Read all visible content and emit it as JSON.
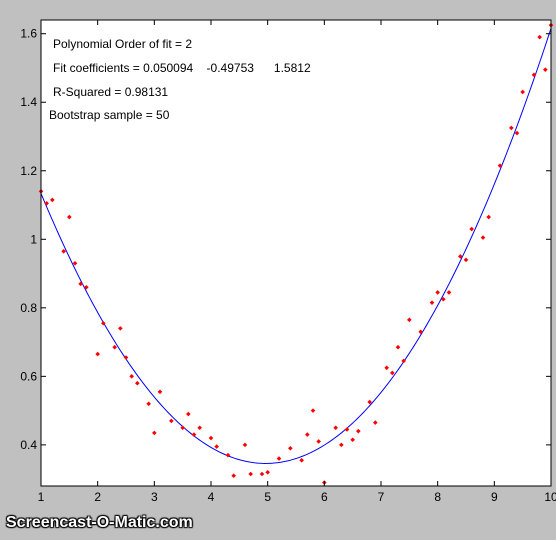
{
  "watermark": "Screencast-O-Matic.com",
  "colors": {
    "fit_line": "#0000ff",
    "points": "#ff0000",
    "axes_bg": "#ffffff",
    "figure_bg": "#c0c0c0"
  },
  "chart_data": {
    "type": "scatter",
    "title": "",
    "xlabel": "",
    "ylabel": "",
    "xlim": [
      1,
      10
    ],
    "ylim": [
      0.28,
      1.64
    ],
    "xticks": [
      "1",
      "2",
      "3",
      "4",
      "5",
      "6",
      "7",
      "8",
      "9",
      "10"
    ],
    "yticks": [
      "0.4",
      "0.6",
      "0.8",
      "1",
      "1.2",
      "1.4",
      "1.6"
    ],
    "grid": false,
    "annotations": [
      "Polynomial Order of fit = 2",
      "Fit coefficients = 0.050094    -0.49753      1.5812",
      "R-Squared = 0.98131",
      "Bootstrap sample = 50"
    ],
    "fit": {
      "name": "polynomial fit",
      "coefficients": [
        0.050094,
        -0.49753,
        1.5812
      ]
    },
    "series": [
      {
        "points": [
          [
            1.0,
            1.14
          ],
          [
            1.1,
            1.105
          ],
          [
            1.2,
            1.115
          ],
          [
            1.4,
            0.965
          ],
          [
            1.5,
            1.065
          ],
          [
            1.6,
            0.93
          ],
          [
            1.7,
            0.87
          ],
          [
            1.8,
            0.86
          ],
          [
            2.0,
            0.665
          ],
          [
            2.1,
            0.755
          ],
          [
            2.3,
            0.685
          ],
          [
            2.4,
            0.74
          ],
          [
            2.5,
            0.655
          ],
          [
            2.6,
            0.6
          ],
          [
            2.7,
            0.58
          ],
          [
            2.9,
            0.52
          ],
          [
            3.0,
            0.435
          ],
          [
            3.1,
            0.555
          ],
          [
            3.3,
            0.47
          ],
          [
            3.5,
            0.45
          ],
          [
            3.6,
            0.49
          ],
          [
            3.7,
            0.43
          ],
          [
            3.8,
            0.45
          ],
          [
            4.0,
            0.42
          ],
          [
            4.1,
            0.395
          ],
          [
            4.3,
            0.37
          ],
          [
            4.4,
            0.31
          ],
          [
            4.6,
            0.4
          ],
          [
            4.7,
            0.315
          ],
          [
            4.9,
            0.315
          ],
          [
            5.0,
            0.32
          ],
          [
            5.2,
            0.36
          ],
          [
            5.4,
            0.39
          ],
          [
            5.6,
            0.355
          ],
          [
            5.7,
            0.43
          ],
          [
            5.8,
            0.5
          ],
          [
            5.9,
            0.41
          ],
          [
            6.0,
            0.29
          ],
          [
            6.2,
            0.45
          ],
          [
            6.3,
            0.4
          ],
          [
            6.4,
            0.445
          ],
          [
            6.5,
            0.415
          ],
          [
            6.6,
            0.44
          ],
          [
            6.8,
            0.525
          ],
          [
            6.9,
            0.465
          ],
          [
            7.1,
            0.625
          ],
          [
            7.2,
            0.61
          ],
          [
            7.3,
            0.685
          ],
          [
            7.4,
            0.645
          ],
          [
            7.5,
            0.765
          ],
          [
            7.7,
            0.73
          ],
          [
            7.9,
            0.815
          ],
          [
            8.0,
            0.845
          ],
          [
            8.1,
            0.825
          ],
          [
            8.2,
            0.845
          ],
          [
            8.4,
            0.95
          ],
          [
            8.5,
            0.94
          ],
          [
            8.6,
            1.03
          ],
          [
            8.8,
            1.005
          ],
          [
            8.9,
            1.065
          ],
          [
            9.1,
            1.215
          ],
          [
            9.3,
            1.325
          ],
          [
            9.4,
            1.31
          ],
          [
            9.5,
            1.43
          ],
          [
            9.7,
            1.48
          ],
          [
            9.8,
            1.59
          ],
          [
            9.9,
            1.495
          ],
          [
            10.0,
            1.625
          ]
        ]
      }
    ]
  }
}
